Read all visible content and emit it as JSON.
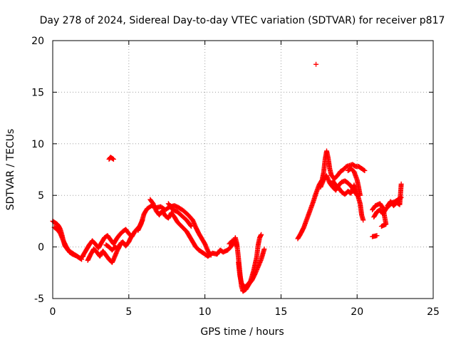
{
  "chart_data": {
    "type": "scatter",
    "title": "Day 278 of 2024, Sidereal Day-to-day VTEC variation (SDTVAR) for receiver p817",
    "xlabel": "GPS time / hours",
    "ylabel": "SDTVAR / TECUs",
    "xlim": [
      0,
      25
    ],
    "ylim": [
      -5,
      20
    ],
    "xticks": [
      0,
      5,
      10,
      15,
      20,
      25
    ],
    "yticks": [
      -5,
      0,
      5,
      10,
      15,
      20
    ],
    "xtick_labels": [
      "0",
      "5",
      "10",
      "15",
      "20",
      "25"
    ],
    "ytick_labels": [
      "-5",
      "0",
      "5",
      "10",
      "15",
      "20"
    ],
    "grid": true,
    "marker": "plus",
    "series": [
      {
        "name": "SDTVAR",
        "color": "#ff0000",
        "segments": [
          [
            [
              0.0,
              2.5
            ],
            [
              0.1,
              2.4
            ],
            [
              0.2,
              2.3
            ],
            [
              0.3,
              2.2
            ],
            [
              0.4,
              2.0
            ],
            [
              0.5,
              1.7
            ],
            [
              0.6,
              1.2
            ],
            [
              0.7,
              0.6
            ],
            [
              0.8,
              0.1
            ],
            [
              1.0,
              -0.3
            ],
            [
              1.2,
              -0.5
            ],
            [
              1.5,
              -0.8
            ],
            [
              1.7,
              -1.0
            ],
            [
              1.9,
              -1.2
            ]
          ],
          [
            [
              0.1,
              1.9
            ],
            [
              0.3,
              1.7
            ],
            [
              0.5,
              1.3
            ],
            [
              0.7,
              0.6
            ],
            [
              0.9,
              0.0
            ],
            [
              1.1,
              -0.5
            ],
            [
              1.3,
              -0.7
            ],
            [
              1.6,
              -0.9
            ],
            [
              1.8,
              -1.1
            ],
            [
              2.0,
              -0.9
            ]
          ],
          [
            [
              2.0,
              -0.8
            ],
            [
              2.2,
              -0.3
            ],
            [
              2.4,
              0.2
            ],
            [
              2.6,
              0.6
            ],
            [
              2.8,
              0.3
            ],
            [
              3.0,
              -0.1
            ],
            [
              3.2,
              0.4
            ],
            [
              3.4,
              0.9
            ],
            [
              3.6,
              1.1
            ],
            [
              3.8,
              0.7
            ],
            [
              4.0,
              0.3
            ],
            [
              4.2,
              0.8
            ],
            [
              4.4,
              1.2
            ],
            [
              4.6,
              1.5
            ],
            [
              4.8,
              1.7
            ],
            [
              5.0,
              1.3
            ],
            [
              5.2,
              1.0
            ],
            [
              5.4,
              1.5
            ],
            [
              5.7,
              2.0
            ],
            [
              5.9,
              2.6
            ]
          ],
          [
            [
              2.3,
              -1.3
            ],
            [
              2.5,
              -0.7
            ],
            [
              2.7,
              -0.2
            ],
            [
              2.9,
              -0.5
            ],
            [
              3.1,
              -0.9
            ],
            [
              3.3,
              -0.4
            ],
            [
              3.5,
              -0.8
            ],
            [
              3.7,
              -1.2
            ],
            [
              3.9,
              -1.5
            ],
            [
              4.0,
              -1.2
            ],
            [
              4.2,
              -0.5
            ],
            [
              4.4,
              0.2
            ],
            [
              4.6,
              0.5
            ],
            [
              4.8,
              0.1
            ],
            [
              5.0,
              0.5
            ],
            [
              5.2,
              1.1
            ]
          ],
          [
            [
              3.5,
              0.2
            ],
            [
              3.7,
              0.0
            ],
            [
              3.9,
              -0.3
            ],
            [
              4.1,
              0.0
            ],
            [
              4.3,
              -0.2
            ],
            [
              4.5,
              0.4
            ]
          ],
          [
            [
              3.7,
              8.5
            ],
            [
              3.8,
              8.7
            ],
            [
              3.9,
              8.6
            ],
            [
              4.0,
              8.5
            ]
          ],
          [
            [
              5.6,
              1.6
            ],
            [
              5.8,
              2.2
            ],
            [
              6.0,
              3.2
            ],
            [
              6.2,
              3.7
            ],
            [
              6.5,
              4.0
            ],
            [
              6.8,
              3.8
            ],
            [
              7.1,
              3.9
            ],
            [
              7.4,
              3.6
            ],
            [
              7.7,
              3.9
            ],
            [
              8.0,
              4.0
            ],
            [
              8.3,
              3.8
            ],
            [
              8.6,
              3.5
            ],
            [
              8.9,
              3.1
            ],
            [
              9.2,
              2.6
            ],
            [
              9.4,
              1.9
            ],
            [
              9.6,
              1.3
            ],
            [
              9.8,
              0.8
            ],
            [
              10.0,
              0.3
            ],
            [
              10.2,
              -0.4
            ],
            [
              10.4,
              -0.8
            ]
          ],
          [
            [
              6.4,
              4.6
            ],
            [
              6.6,
              4.2
            ],
            [
              6.8,
              3.5
            ],
            [
              7.0,
              3.1
            ],
            [
              7.2,
              3.5
            ],
            [
              7.4,
              3.0
            ],
            [
              7.6,
              2.8
            ],
            [
              7.8,
              3.3
            ],
            [
              8.0,
              2.9
            ],
            [
              8.2,
              2.4
            ],
            [
              8.4,
              2.1
            ],
            [
              8.6,
              1.8
            ],
            [
              8.8,
              1.5
            ],
            [
              9.0,
              1.0
            ],
            [
              9.2,
              0.5
            ],
            [
              9.4,
              0.0
            ],
            [
              9.6,
              -0.3
            ],
            [
              9.8,
              -0.5
            ],
            [
              10.0,
              -0.7
            ],
            [
              10.2,
              -0.9
            ]
          ],
          [
            [
              7.6,
              4.2
            ],
            [
              7.9,
              3.6
            ],
            [
              8.2,
              3.4
            ],
            [
              8.5,
              3.0
            ],
            [
              8.8,
              2.6
            ],
            [
              9.1,
              2.0
            ]
          ],
          [
            [
              10.2,
              -0.9
            ],
            [
              10.5,
              -0.6
            ],
            [
              10.8,
              -0.7
            ],
            [
              11.0,
              -0.3
            ],
            [
              11.2,
              -0.5
            ],
            [
              11.5,
              -0.3
            ],
            [
              11.7,
              0.0
            ],
            [
              11.9,
              0.5
            ],
            [
              12.0,
              0.9
            ],
            [
              12.1,
              0.3
            ],
            [
              12.2,
              -1.0
            ],
            [
              12.3,
              -2.5
            ],
            [
              12.4,
              -3.8
            ],
            [
              12.5,
              -4.3
            ],
            [
              12.7,
              -4.1
            ],
            [
              12.9,
              -3.6
            ],
            [
              13.1,
              -3.2
            ],
            [
              13.3,
              -2.6
            ],
            [
              13.5,
              -1.9
            ],
            [
              13.7,
              -1.2
            ],
            [
              13.9,
              -0.2
            ]
          ],
          [
            [
              12.2,
              -1.5
            ],
            [
              12.3,
              -2.8
            ],
            [
              12.4,
              -3.5
            ],
            [
              12.6,
              -3.9
            ],
            [
              12.8,
              -3.7
            ],
            [
              13.0,
              -3.3
            ],
            [
              13.2,
              -2.3
            ],
            [
              13.4,
              -1.0
            ],
            [
              13.5,
              0.2
            ],
            [
              13.6,
              0.9
            ],
            [
              13.7,
              1.2
            ]
          ],
          [
            [
              11.6,
              0.3
            ],
            [
              11.8,
              0.6
            ],
            [
              12.0,
              0.5
            ],
            [
              12.1,
              0.0
            ]
          ],
          [
            [
              16.1,
              0.8
            ],
            [
              16.3,
              1.3
            ],
            [
              16.5,
              1.9
            ],
            [
              16.7,
              2.7
            ],
            [
              16.9,
              3.5
            ],
            [
              17.1,
              4.3
            ],
            [
              17.3,
              5.2
            ],
            [
              17.5,
              6.0
            ],
            [
              17.7,
              6.5
            ],
            [
              17.8,
              7.2
            ],
            [
              17.9,
              8.5
            ],
            [
              18.0,
              9.3
            ],
            [
              18.1,
              8.6
            ],
            [
              18.2,
              7.6
            ],
            [
              18.3,
              7.0
            ],
            [
              18.5,
              6.6
            ],
            [
              18.7,
              6.9
            ],
            [
              18.9,
              7.3
            ],
            [
              19.1,
              7.5
            ],
            [
              19.3,
              7.8
            ],
            [
              19.5,
              7.9
            ],
            [
              19.7,
              8.0
            ],
            [
              19.9,
              7.8
            ],
            [
              20.1,
              7.8
            ],
            [
              20.3,
              7.6
            ],
            [
              20.5,
              7.4
            ]
          ],
          [
            [
              17.6,
              5.8
            ],
            [
              17.8,
              6.5
            ],
            [
              18.0,
              6.9
            ],
            [
              18.2,
              6.2
            ],
            [
              18.4,
              5.8
            ],
            [
              18.6,
              5.5
            ],
            [
              18.8,
              6.0
            ],
            [
              19.0,
              6.3
            ],
            [
              19.2,
              6.4
            ],
            [
              19.4,
              6.2
            ],
            [
              19.6,
              5.9
            ],
            [
              19.8,
              5.5
            ],
            [
              20.0,
              5.0
            ]
          ],
          [
            [
              18.4,
              6.4
            ],
            [
              18.6,
              6.0
            ],
            [
              18.8,
              5.7
            ],
            [
              19.0,
              5.3
            ],
            [
              19.2,
              5.1
            ],
            [
              19.4,
              5.4
            ],
            [
              19.6,
              5.2
            ],
            [
              19.8,
              6.0
            ],
            [
              20.0,
              5.2
            ],
            [
              20.2,
              4.2
            ],
            [
              20.3,
              3.1
            ],
            [
              20.4,
              2.6
            ]
          ],
          [
            [
              19.4,
              7.4
            ],
            [
              19.6,
              7.6
            ],
            [
              19.8,
              7.3
            ],
            [
              20.0,
              6.5
            ],
            [
              20.1,
              5.8
            ],
            [
              20.2,
              5.0
            ]
          ],
          [
            [
              17.3,
              17.7
            ]
          ],
          [
            [
              21.0,
              1.0
            ],
            [
              21.3,
              1.1
            ]
          ],
          [
            [
              21.0,
              3.6
            ],
            [
              21.2,
              4.0
            ],
            [
              21.5,
              4.2
            ],
            [
              21.7,
              3.8
            ],
            [
              21.9,
              2.2
            ],
            [
              21.6,
              2.0
            ]
          ],
          [
            [
              21.1,
              2.9
            ],
            [
              21.3,
              3.4
            ],
            [
              21.5,
              3.6
            ],
            [
              21.7,
              3.2
            ],
            [
              21.9,
              3.7
            ],
            [
              22.1,
              4.0
            ],
            [
              22.3,
              4.3
            ],
            [
              22.5,
              4.4
            ],
            [
              22.7,
              4.6
            ],
            [
              22.9,
              4.8
            ]
          ],
          [
            [
              22.0,
              4.0
            ],
            [
              22.2,
              4.4
            ],
            [
              22.4,
              4.0
            ],
            [
              22.6,
              4.3
            ],
            [
              22.8,
              4.1
            ],
            [
              22.9,
              6.1
            ]
          ]
        ]
      }
    ]
  }
}
